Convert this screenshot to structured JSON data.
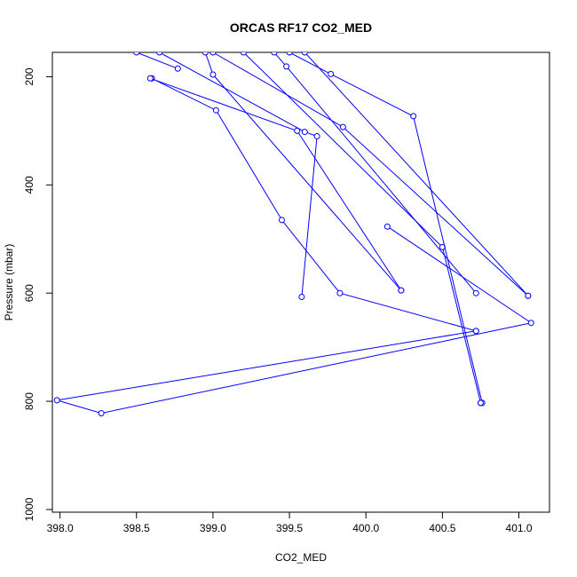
{
  "chart_data": {
    "type": "line",
    "title": "ORCAS RF17 CO2_MED",
    "xlabel": "CO2_MED",
    "ylabel": "Pressure (mbar)",
    "xlim": [
      397.95,
      401.2
    ],
    "ylim": [
      1005,
      155
    ],
    "y_reversed": true,
    "x_ticks": [
      "398.0",
      "398.5",
      "399.0",
      "399.5",
      "400.0",
      "400.5",
      "401.0"
    ],
    "y_ticks": [
      "200",
      "400",
      "600",
      "800",
      "1000"
    ],
    "grid": false,
    "legend": "none",
    "series_color": "#0000ff",
    "series": [
      {
        "x": [
          398.5,
          398.77
        ],
        "y": [
          155,
          185
        ]
      },
      {
        "x": [
          398.6,
          399.02,
          399.45,
          399.83,
          400.72
        ],
        "y": [
          203,
          262,
          465,
          600,
          670
        ]
      },
      {
        "x": [
          398.65,
          399.6,
          399.68,
          399.58
        ],
        "y": [
          155,
          302,
          310,
          607
        ]
      },
      {
        "x": [
          398.59,
          399.55,
          400.23
        ],
        "y": [
          203,
          300,
          595
        ]
      },
      {
        "x": [
          398.95,
          399.0,
          400.23
        ],
        "y": [
          155,
          196,
          595
        ]
      },
      {
        "x": [
          399.0,
          399.85,
          401.06
        ],
        "y": [
          155,
          293,
          605
        ]
      },
      {
        "x": [
          399.2,
          400.5,
          400.75
        ],
        "y": [
          155,
          515,
          803
        ]
      },
      {
        "x": [
          399.4,
          399.48,
          400.72
        ],
        "y": [
          155,
          181,
          600
        ]
      },
      {
        "x": [
          399.5,
          399.77,
          400.31,
          400.76,
          400.75
        ],
        "y": [
          155,
          195,
          273,
          803,
          803
        ]
      },
      {
        "x": [
          399.6,
          401.06
        ],
        "y": [
          155,
          605
        ]
      },
      {
        "x": [
          400.14,
          401.08,
          398.27,
          397.98,
          400.72
        ],
        "y": [
          477,
          655,
          822,
          798,
          670
        ]
      }
    ]
  }
}
